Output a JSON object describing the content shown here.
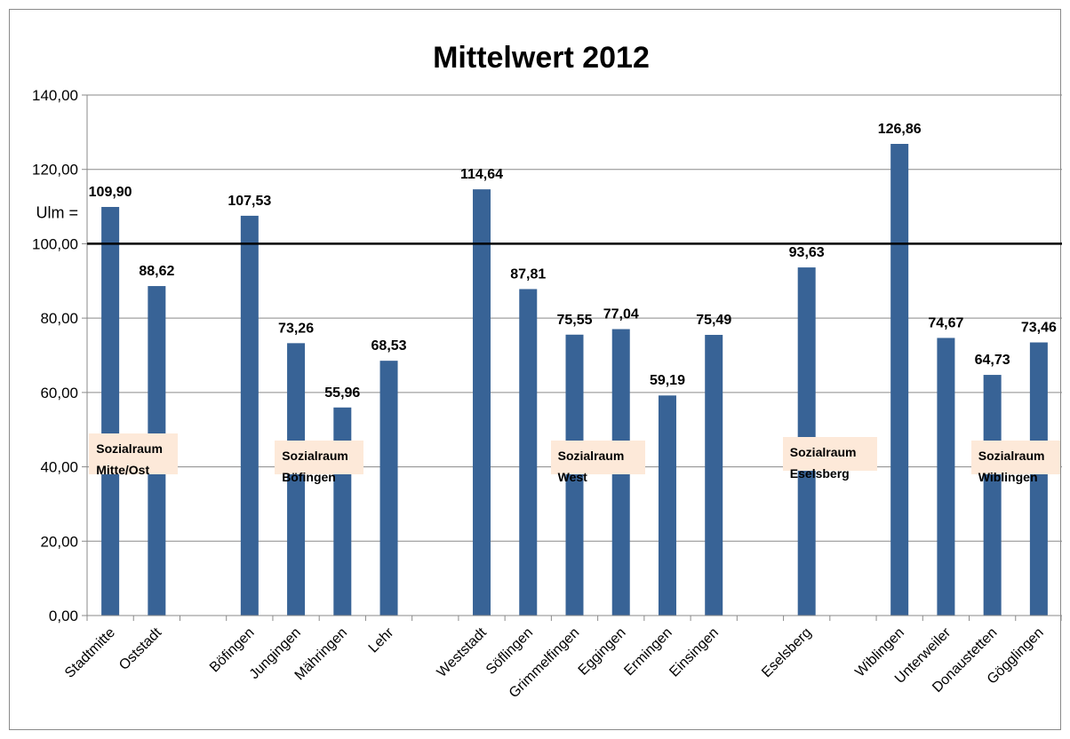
{
  "chart_data": {
    "type": "bar",
    "title": "Mittelwert 2012",
    "ylim": [
      0,
      140
    ],
    "yticks": [
      "0,00",
      "20,00",
      "40,00",
      "60,00",
      "80,00",
      "100,00",
      "120,00",
      "140,00"
    ],
    "ytick_values": [
      0,
      20,
      40,
      60,
      80,
      100,
      120,
      140
    ],
    "grid": "horizontal",
    "bar_color": "#386396",
    "categories": [
      "Stadtmitte",
      "Oststadt",
      "",
      "Böfingen",
      "Jungingen",
      "Mähringen",
      "Lehr",
      "",
      "Weststadt",
      "Söflingen",
      "Grimmelfingen",
      "Eggingen",
      "Ermingen",
      "Einsingen",
      "",
      "Eselsberg",
      "",
      "Wiblingen",
      "Unterweiler",
      "Donaustetten",
      "Gögglingen"
    ],
    "values": [
      109.9,
      88.62,
      null,
      107.53,
      73.26,
      55.96,
      68.53,
      null,
      114.64,
      87.81,
      75.55,
      77.04,
      59.19,
      75.49,
      null,
      93.63,
      null,
      126.86,
      74.67,
      64.73,
      73.46
    ],
    "value_labels": [
      "109,90",
      "88,62",
      "",
      "107,53",
      "73,26",
      "55,96",
      "68,53",
      "",
      "114,64",
      "87,81",
      "75,55",
      "77,04",
      "59,19",
      "75,49",
      "",
      "93,63",
      "",
      "126,86",
      "74,67",
      "64,73",
      "73,46"
    ],
    "reference_line": {
      "value": 100,
      "label": "Ulm ="
    },
    "annotations": [
      {
        "text": "Sozialraum\nMitte/Ost",
        "value_from": 38,
        "value_to": 49
      },
      {
        "text": "Sozialraum\nBöfingen",
        "value_from": 38,
        "value_to": 47
      },
      {
        "text": "Sozialraum\nWest",
        "value_from": 38,
        "value_to": 47
      },
      {
        "text": "Sozialraum\nEselsberg",
        "value_from": 39,
        "value_to": 48
      },
      {
        "text": "Sozialraum\nWiblingen",
        "value_from": 38,
        "value_to": 47
      }
    ]
  }
}
